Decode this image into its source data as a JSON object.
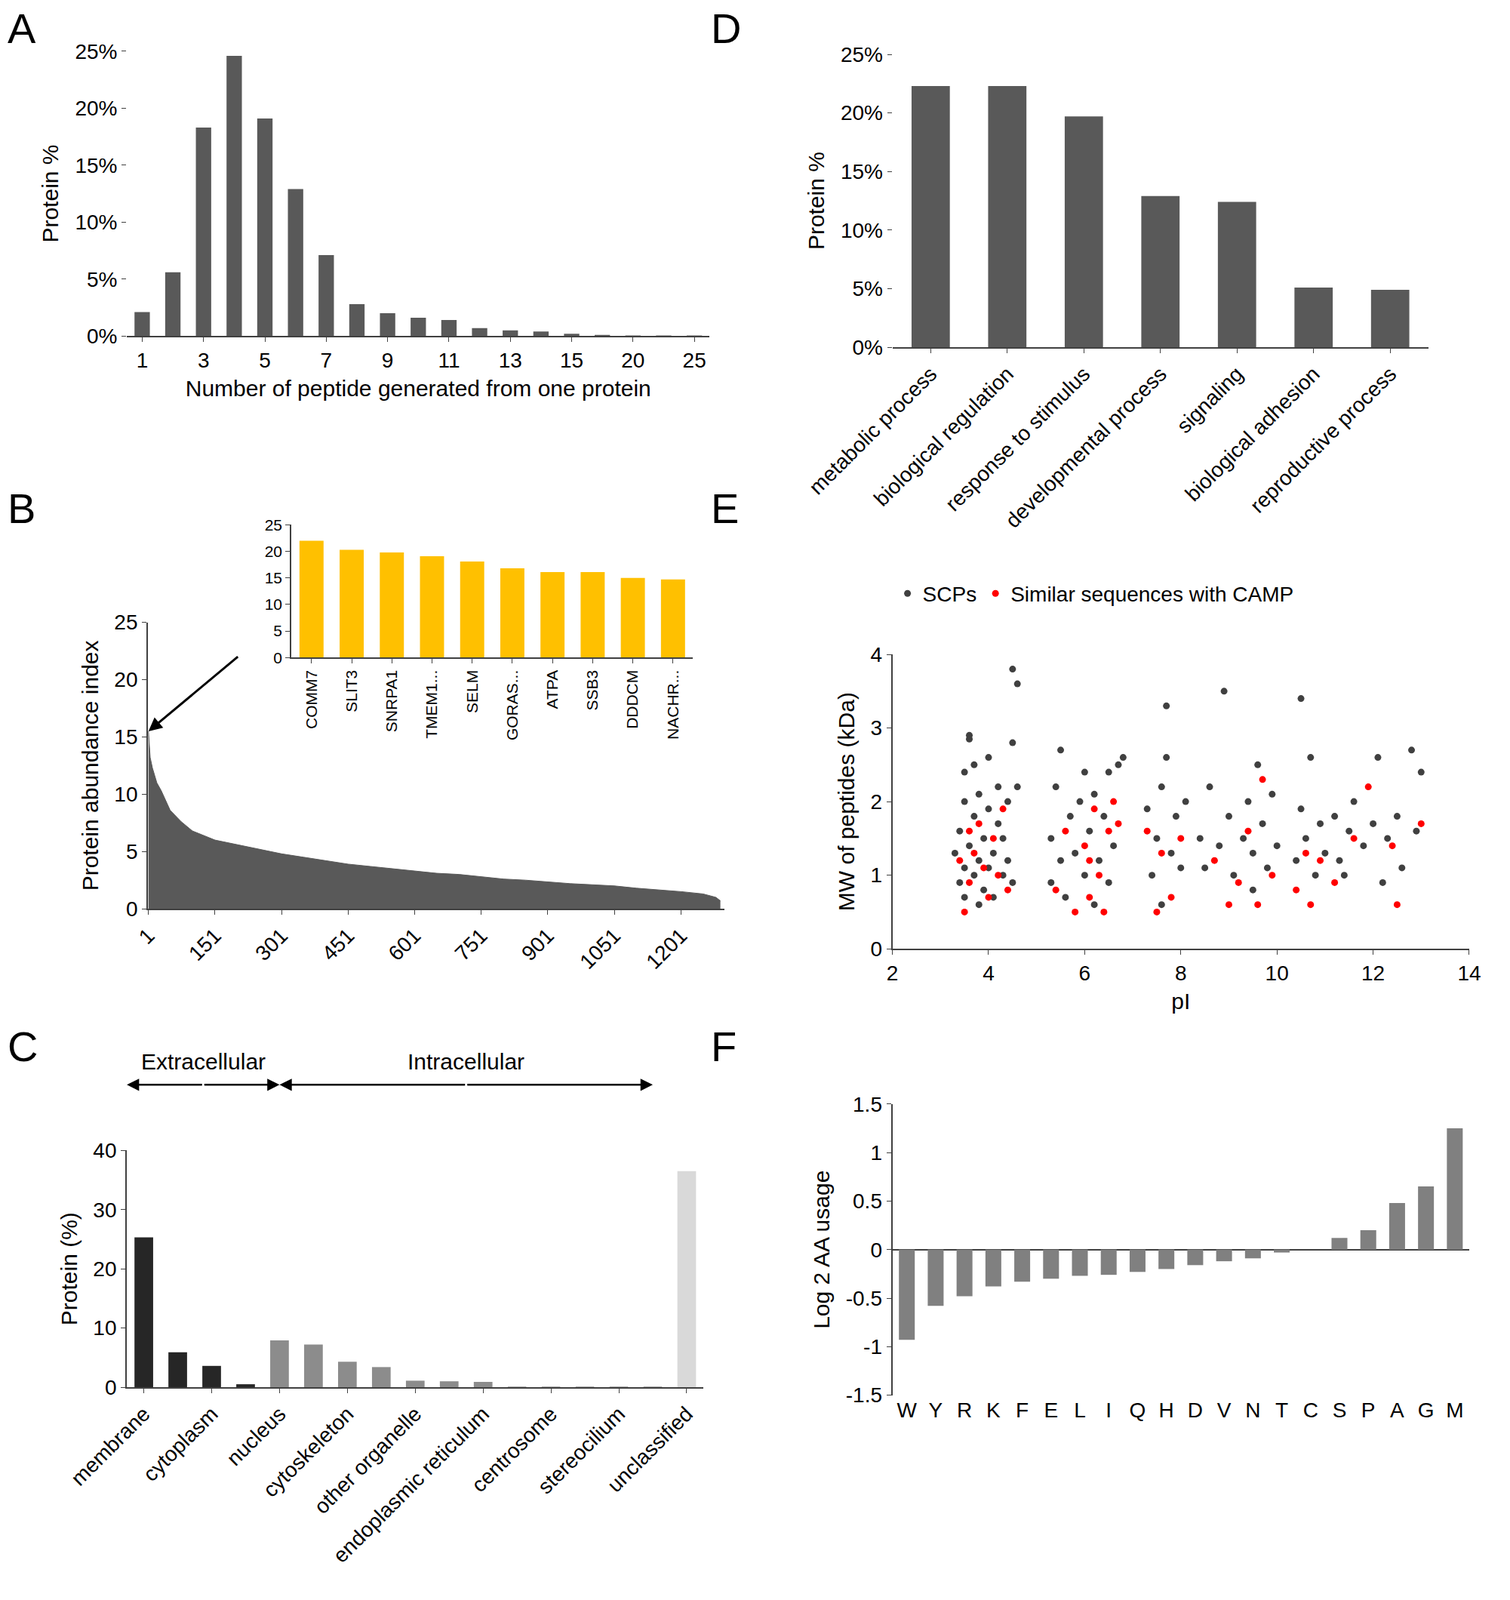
{
  "chart_data": [
    {
      "type": "bar",
      "title": "A",
      "xlabel": "Number of peptide generated from one protein",
      "ylabel": "Protein %",
      "categories": [
        "1",
        null,
        "3",
        null,
        "5",
        null,
        "7",
        null,
        "9",
        null,
        "11",
        null,
        "13",
        null,
        "15",
        null,
        "20",
        null,
        "25"
      ],
      "values": [
        2.1,
        5.6,
        18.3,
        24.6,
        19.1,
        12.9,
        7.1,
        2.8,
        2.0,
        1.6,
        1.4,
        0.7,
        0.5,
        0.4,
        0.2,
        0.1,
        0.05,
        0.05,
        0.05
      ],
      "color": "#595959",
      "ylim": [
        0,
        25
      ],
      "yticks": [
        {
          "value": 0,
          "label": "0%"
        },
        {
          "value": 5,
          "label": "5%"
        },
        {
          "value": 10,
          "label": "10%"
        },
        {
          "value": 15,
          "label": "15%"
        },
        {
          "value": 20,
          "label": "20%"
        },
        {
          "value": 25,
          "label": "25%"
        }
      ]
    },
    {
      "type": "area",
      "title": "B",
      "ylabel": "Protein abundance index",
      "x": [
        1,
        5,
        10,
        20,
        30,
        50,
        75,
        100,
        151,
        200,
        250,
        301,
        351,
        401,
        451,
        501,
        551,
        601,
        651,
        701,
        751,
        801,
        851,
        901,
        951,
        1001,
        1051,
        1101,
        1151,
        1201,
        1251,
        1280,
        1290
      ],
      "values": [
        15.5,
        13.2,
        12.3,
        11.0,
        10.3,
        8.6,
        7.6,
        6.8,
        6.0,
        5.6,
        5.2,
        4.8,
        4.5,
        4.2,
        3.9,
        3.7,
        3.5,
        3.3,
        3.1,
        3.0,
        2.8,
        2.6,
        2.5,
        2.35,
        2.2,
        2.1,
        2.0,
        1.8,
        1.65,
        1.5,
        1.3,
        1.0,
        0.7
      ],
      "color": "#595959",
      "xlim": [
        0,
        1300
      ],
      "xticks": [
        1,
        151,
        301,
        451,
        601,
        751,
        901,
        1051,
        1201
      ],
      "ylim": [
        0,
        25
      ],
      "yticks": [
        0,
        5,
        10,
        15,
        20,
        25
      ]
    },
    {
      "type": "bar",
      "categories": [
        "COMM7",
        "SLIT3",
        "SNRPA1",
        "TMEM1...",
        "SELM",
        "GORAS...",
        "ATPA",
        "SSB3",
        "DDDCM",
        "NACHR..."
      ],
      "values": [
        22.0,
        20.3,
        19.8,
        19.1,
        18.1,
        16.8,
        16.1,
        16.1,
        15.0,
        14.7
      ],
      "color": "#ffc000",
      "ylim": [
        0,
        25
      ],
      "yticks": [
        0,
        5,
        10,
        15,
        20,
        25
      ]
    },
    {
      "type": "bar",
      "title": "C",
      "ylabel": "Protein (%)",
      "categories": [
        "membrane",
        null,
        "cytoplasm",
        null,
        "nucleus",
        null,
        "cytoskeleton",
        null,
        "other organelle",
        null,
        "endoplasmic reticulum",
        null,
        "centrosome",
        null,
        "stereocilium",
        null,
        "unclassified"
      ],
      "values": [
        25.3,
        5.9,
        3.6,
        0.5,
        7.9,
        7.2,
        4.3,
        3.4,
        1.1,
        1.0,
        0.9,
        0.1,
        0.1,
        0.1,
        0.1,
        0.1,
        36.5
      ],
      "colors": [
        "#262626",
        "#262626",
        "#262626",
        "#262626",
        "#8c8c8c",
        "#8c8c8c",
        "#8c8c8c",
        "#8c8c8c",
        "#8c8c8c",
        "#8c8c8c",
        "#8c8c8c",
        "#8c8c8c",
        "#8c8c8c",
        "#8c8c8c",
        "#8c8c8c",
        "#8c8c8c",
        "#d9d9d9"
      ],
      "ylim": [
        0,
        40
      ],
      "yticks": [
        0,
        10,
        20,
        30,
        40
      ],
      "annotations": [
        {
          "text": "Extracellular",
          "from": -0.5,
          "to": 4
        },
        {
          "text": "Intracellular",
          "from": 4,
          "to": 15
        }
      ]
    },
    {
      "type": "bar",
      "title": "D",
      "ylabel": "Protein %",
      "categories": [
        "metabolic process",
        "biological regulation",
        "response to stimulus",
        "developmental process",
        "signaling",
        "biological adhesion",
        "reproductive process"
      ],
      "values": [
        22.3,
        22.3,
        19.7,
        12.9,
        12.4,
        5.1,
        4.9
      ],
      "color": "#595959",
      "ylim": [
        0,
        25
      ],
      "yticks": [
        {
          "value": 0,
          "label": "0%"
        },
        {
          "value": 5,
          "label": "5%"
        },
        {
          "value": 10,
          "label": "10%"
        },
        {
          "value": 15,
          "label": "15%"
        },
        {
          "value": 20,
          "label": "20%"
        },
        {
          "value": 25,
          "label": "25%"
        }
      ]
    },
    {
      "type": "scatter",
      "title": "E",
      "xlabel": "pI",
      "ylabel": "MW of peptides (kDa)",
      "legend": "top",
      "series": [
        {
          "name": "SCPs",
          "color": "#404040",
          "x": [
            3.3,
            3.4,
            3.4,
            3.5,
            3.5,
            3.5,
            3.6,
            3.6,
            3.6,
            3.7,
            3.7,
            3.8,
            3.8,
            3.8,
            3.9,
            3.9,
            4.0,
            4.0,
            4.0,
            4.1,
            4.1,
            4.2,
            4.2,
            4.3,
            4.3,
            4.4,
            4.4,
            4.5,
            4.5,
            4.6,
            4.6,
            4.5,
            3.5,
            3.7,
            5.3,
            5.3,
            5.4,
            5.5,
            5.5,
            5.6,
            5.7,
            5.8,
            5.9,
            6.0,
            6.1,
            6.2,
            6.2,
            6.3,
            6.4,
            6.5,
            6.5,
            6.6,
            6.7,
            6.8,
            6.0,
            7.3,
            7.4,
            7.5,
            7.6,
            7.6,
            7.7,
            7.7,
            7.8,
            7.9,
            8.0,
            8.1,
            8.4,
            8.5,
            8.6,
            8.8,
            8.9,
            9.0,
            9.1,
            9.3,
            9.4,
            9.5,
            9.5,
            9.6,
            9.7,
            9.8,
            9.9,
            10.0,
            10.4,
            10.5,
            10.5,
            10.6,
            10.7,
            10.8,
            10.9,
            11.0,
            11.2,
            11.3,
            11.5,
            11.6,
            11.8,
            12.0,
            12.1,
            12.3,
            12.5,
            12.6,
            12.8,
            12.9,
            13.0,
            11.4,
            12.2
          ],
          "values": [
            1.3,
            0.9,
            1.6,
            1.1,
            2.0,
            0.7,
            1.4,
            2.85,
            2.9,
            1.0,
            1.8,
            0.6,
            1.2,
            2.1,
            1.5,
            0.8,
            1.1,
            1.9,
            2.6,
            1.3,
            0.7,
            1.7,
            2.2,
            1.0,
            1.5,
            2.0,
            1.2,
            3.8,
            2.8,
            3.6,
            2.2,
            0.9,
            2.4,
            2.5,
            1.5,
            0.9,
            2.2,
            1.2,
            2.7,
            0.7,
            1.8,
            1.3,
            2.0,
            1.0,
            1.6,
            0.6,
            2.1,
            1.2,
            1.8,
            0.9,
            2.4,
            1.4,
            2.5,
            2.6,
            2.4,
            1.9,
            1.0,
            1.5,
            2.2,
            0.6,
            3.3,
            2.6,
            1.3,
            1.8,
            1.1,
            2.0,
            1.5,
            1.1,
            2.2,
            1.4,
            3.5,
            1.8,
            1.0,
            1.5,
            2.0,
            0.8,
            1.3,
            2.5,
            1.7,
            1.1,
            2.1,
            1.4,
            1.2,
            1.9,
            3.4,
            1.5,
            2.6,
            1.0,
            1.7,
            1.3,
            1.8,
            1.2,
            1.6,
            2.0,
            1.4,
            1.7,
            2.6,
            1.5,
            1.8,
            1.1,
            2.7,
            1.6,
            2.4,
            1.0,
            0.9
          ]
        },
        {
          "name": "Similar sequences with CAMP",
          "color": "#ff0000",
          "x": [
            3.4,
            3.5,
            3.6,
            3.7,
            3.8,
            3.9,
            4.0,
            4.1,
            4.2,
            4.3,
            4.4,
            3.6,
            5.4,
            5.6,
            5.8,
            6.0,
            6.1,
            6.2,
            6.3,
            6.4,
            6.5,
            6.6,
            6.1,
            6.7,
            7.3,
            7.5,
            7.6,
            7.8,
            8.0,
            8.7,
            9.2,
            9.4,
            9.6,
            9.7,
            9.9,
            9.0,
            10.4,
            10.6,
            10.7,
            10.9,
            11.2,
            11.9,
            12.4,
            12.5,
            13.0,
            11.6
          ],
          "values": [
            1.2,
            0.5,
            0.9,
            1.3,
            1.7,
            1.1,
            0.7,
            1.5,
            1.0,
            1.9,
            0.8,
            1.6,
            0.8,
            1.6,
            0.5,
            1.4,
            0.7,
            1.9,
            1.0,
            0.5,
            1.6,
            2.0,
            1.2,
            1.7,
            1.6,
            0.5,
            1.3,
            0.7,
            1.5,
            1.2,
            0.9,
            1.6,
            0.6,
            2.3,
            1.0,
            0.6,
            0.8,
            1.3,
            0.6,
            1.2,
            0.9,
            2.2,
            1.4,
            0.6,
            1.7,
            1.5
          ]
        }
      ],
      "xlim": [
        2,
        14
      ],
      "xticks": [
        2,
        4,
        6,
        8,
        10,
        12,
        14
      ],
      "ylim": [
        0,
        4
      ],
      "yticks": [
        0,
        1,
        2,
        3,
        4
      ]
    },
    {
      "type": "bar",
      "title": "F",
      "ylabel": "Log 2 AA usage",
      "categories": [
        "W",
        "Y",
        "R",
        "K",
        "F",
        "E",
        "L",
        "I",
        "Q",
        "H",
        "D",
        "V",
        "N",
        "T",
        "C",
        "S",
        "P",
        "A",
        "G",
        "M"
      ],
      "values": [
        -0.93,
        -0.58,
        -0.48,
        -0.38,
        -0.33,
        -0.3,
        -0.27,
        -0.26,
        -0.23,
        -0.2,
        -0.16,
        -0.12,
        -0.09,
        -0.03,
        0.0,
        0.12,
        0.2,
        0.48,
        0.65,
        1.25
      ],
      "color": "#808080",
      "ylim": [
        -1.5,
        1.5
      ],
      "yticks": [
        -1.5,
        -1,
        -0.5,
        0,
        0.5,
        1,
        1.5
      ]
    }
  ]
}
